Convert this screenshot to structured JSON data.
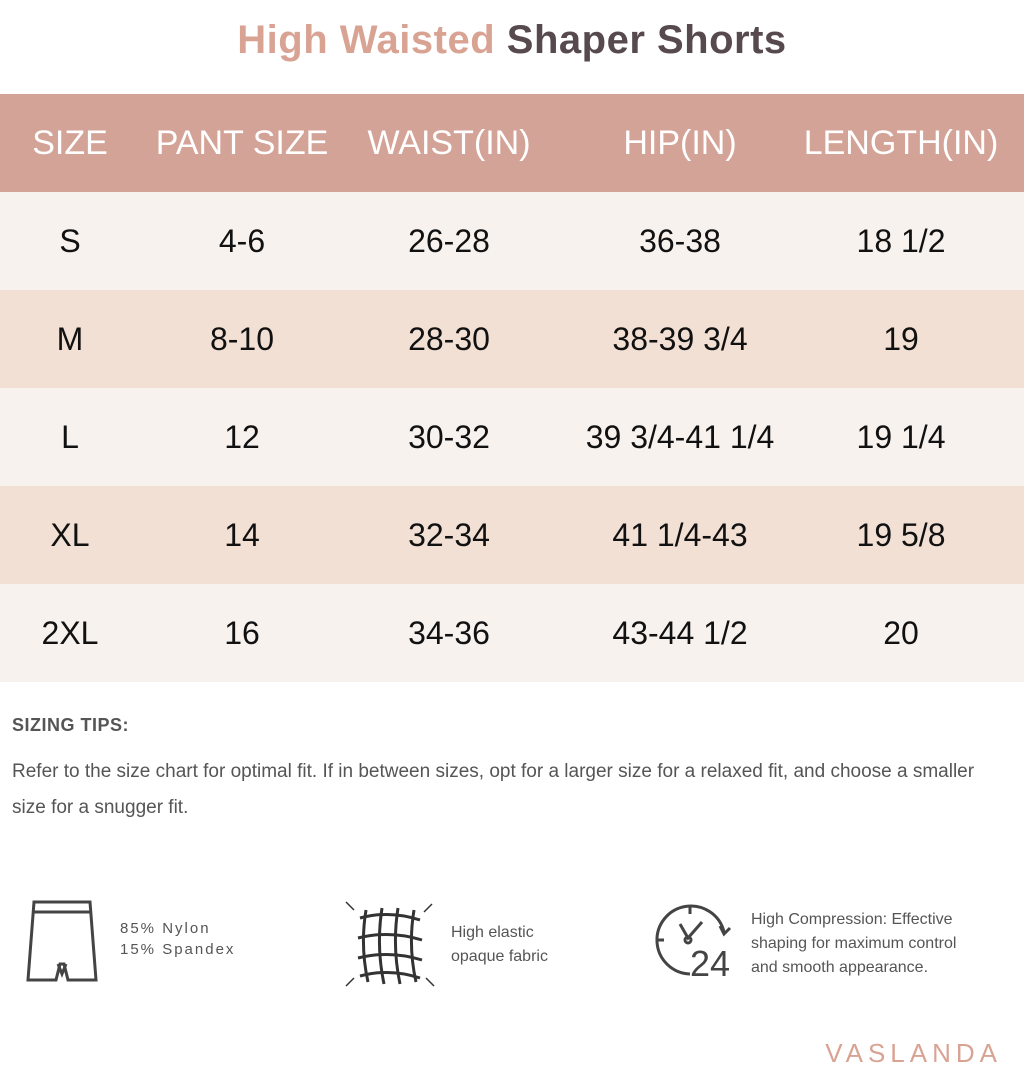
{
  "title": {
    "part1": "High Waisted",
    "part2": "Shaper Shorts"
  },
  "colors": {
    "header_bg": "#d4a397",
    "row_light": "#f8f2ee",
    "row_dark": "#f3e0d5",
    "accent": "#d9a394",
    "title_dark": "#574a4f"
  },
  "table": {
    "headers": [
      "SIZE",
      "PANT SIZE",
      "WAIST(IN)",
      "HIP(IN)",
      "LENGTH(IN)"
    ],
    "rows": [
      [
        "S",
        "4-6",
        "26-28",
        "36-38",
        "18 1/2"
      ],
      [
        "M",
        "8-10",
        "28-30",
        "38-39 3/4",
        "19"
      ],
      [
        "L",
        "12",
        "30-32",
        "39 3/4-41 1/4",
        "19 1/4"
      ],
      [
        "XL",
        "14",
        "32-34",
        "41 1/4-43",
        "19 5/8"
      ],
      [
        "2XL",
        "16",
        "34-36",
        "43-44 1/2",
        "20"
      ]
    ]
  },
  "tips": {
    "heading": "SIZING TIPS:",
    "text": "Refer to the size chart for optimal fit. If in between sizes, opt for a  larger size for a relaxed fit, and choose a smaller size for a snugger fit."
  },
  "features": [
    {
      "icon": "shorts-icon",
      "line1": "85% Nylon",
      "line2": "15% Spandex"
    },
    {
      "icon": "stretch-fabric-icon",
      "line1": "High elastic",
      "line2": "opaque fabric"
    },
    {
      "icon": "clock-24-icon",
      "line1": "High Compression: Effective",
      "line2": "shaping for maximum control",
      "line3": "and smooth appearance."
    }
  ],
  "brand": "VASLANDA"
}
